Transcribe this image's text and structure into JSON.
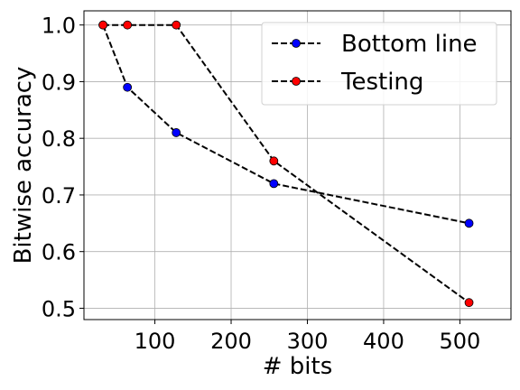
{
  "chart_data": {
    "type": "line",
    "title": "",
    "xlabel": "# bits",
    "ylabel": "Bitwise accuracy",
    "xlim": [
      7,
      567
    ],
    "ylim": [
      0.48,
      1.025
    ],
    "xticks": [
      100,
      200,
      300,
      400,
      500
    ],
    "yticks": [
      0.5,
      0.6,
      0.7,
      0.8,
      0.9,
      1.0
    ],
    "grid": true,
    "legend_position": "top-right",
    "series": [
      {
        "name": "Bottom line",
        "color": "#0000ff",
        "line_style": "dashed",
        "x": [
          32,
          64,
          128,
          256,
          512
        ],
        "y": [
          1.0,
          0.89,
          0.81,
          0.72,
          0.65
        ]
      },
      {
        "name": "Testing",
        "color": "#ff0000",
        "line_style": "dashed",
        "x": [
          32,
          64,
          128,
          256,
          512
        ],
        "y": [
          1.0,
          1.0,
          1.0,
          0.76,
          0.51
        ]
      }
    ]
  }
}
